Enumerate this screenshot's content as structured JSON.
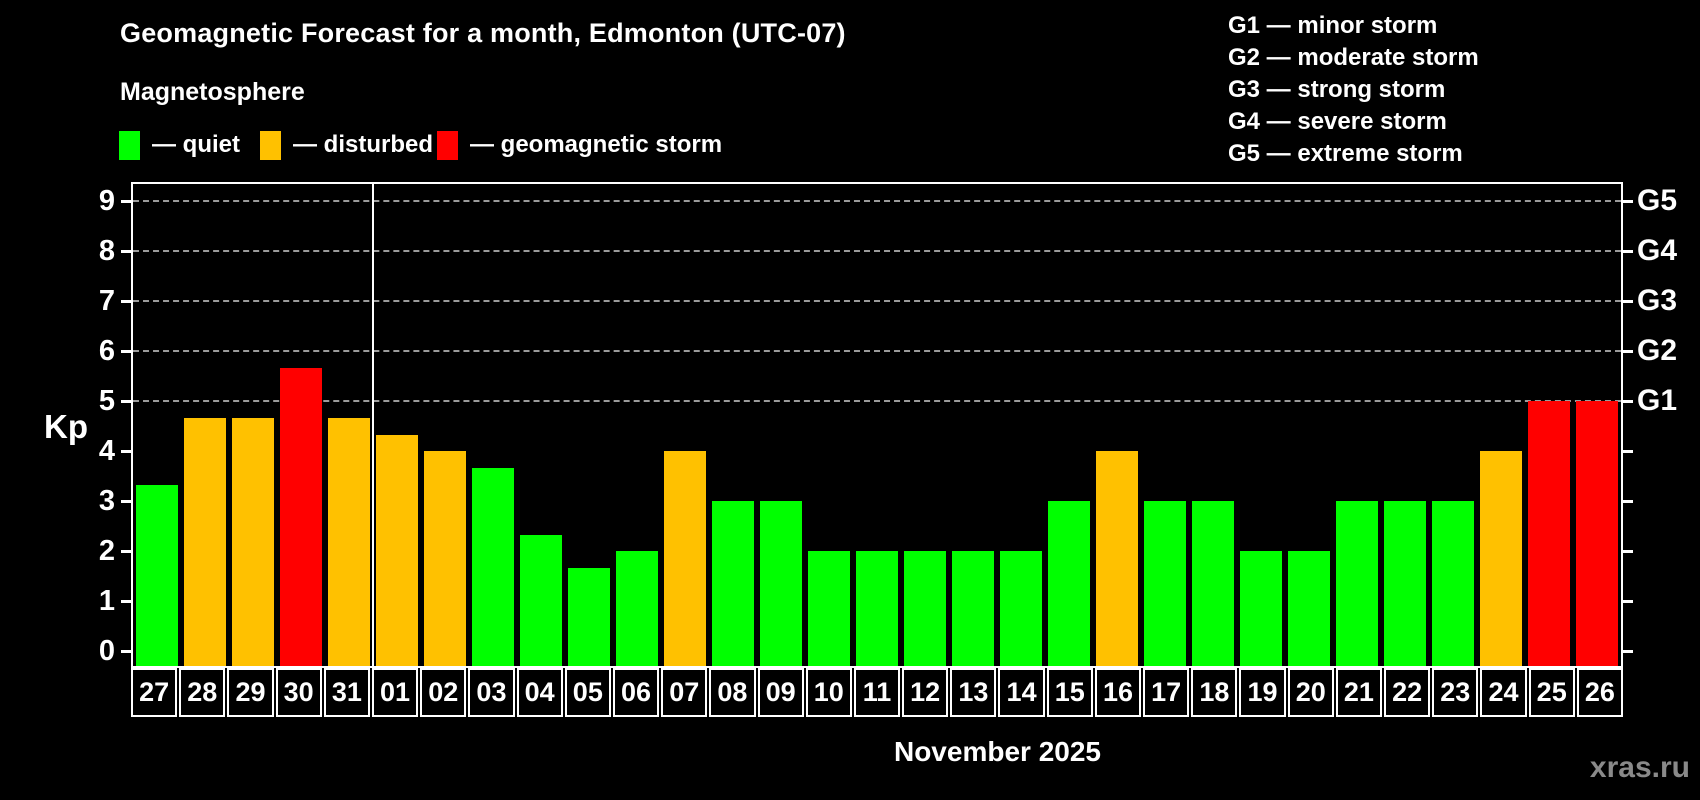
{
  "header": {
    "title": "Geomagnetic Forecast for a month, Edmonton (UTC-07)",
    "subtitle": "Magnetosphere"
  },
  "legend": {
    "items": [
      {
        "status": "quiet",
        "label": "— quiet",
        "color": "#00ff00"
      },
      {
        "status": "disturbed",
        "label": "— disturbed",
        "color": "#ffc100"
      },
      {
        "status": "storm",
        "label": "— geomagnetic storm",
        "color": "#ff0000"
      }
    ]
  },
  "g_scale_legend": {
    "items": [
      {
        "label": "G1 — minor storm"
      },
      {
        "label": "G2 — moderate storm"
      },
      {
        "label": "G3 — strong storm"
      },
      {
        "label": "G4 — severe storm"
      },
      {
        "label": "G5 — extreme storm"
      }
    ]
  },
  "chart_data": {
    "type": "bar",
    "title": "Geomagnetic Forecast for a month, Edmonton (UTC-07)",
    "subtitle": "Magnetosphere",
    "ylabel": "Kp",
    "xlabel": "November 2025",
    "ylim": [
      0,
      9
    ],
    "yticks": [
      0,
      1,
      2,
      3,
      4,
      5,
      6,
      7,
      8,
      9
    ],
    "gridlines_at": [
      5,
      6,
      7,
      8,
      9
    ],
    "grid": "dashed horizontal at storm levels only",
    "legend_position": "top-left",
    "right_axis_labels": [
      {
        "kp": 5,
        "label": "G1"
      },
      {
        "kp": 6,
        "label": "G2"
      },
      {
        "kp": 7,
        "label": "G3"
      },
      {
        "kp": 8,
        "label": "G4"
      },
      {
        "kp": 9,
        "label": "G5"
      }
    ],
    "categories": [
      "27",
      "28",
      "29",
      "30",
      "31",
      "01",
      "02",
      "03",
      "04",
      "05",
      "06",
      "07",
      "08",
      "09",
      "10",
      "11",
      "12",
      "13",
      "14",
      "15",
      "16",
      "17",
      "18",
      "19",
      "20",
      "21",
      "22",
      "23",
      "24",
      "25",
      "26"
    ],
    "values": [
      3.33,
      4.67,
      4.67,
      5.67,
      4.67,
      4.33,
      4.0,
      3.67,
      2.33,
      1.67,
      2.0,
      4.0,
      3.0,
      3.0,
      2.0,
      2.0,
      2.0,
      2.0,
      2.0,
      3.0,
      4.0,
      3.0,
      3.0,
      2.0,
      2.0,
      3.0,
      3.0,
      3.0,
      4.0,
      5.0,
      5.0
    ],
    "statuses": [
      "quiet",
      "disturbed",
      "disturbed",
      "storm",
      "disturbed",
      "disturbed",
      "disturbed",
      "quiet",
      "quiet",
      "quiet",
      "quiet",
      "disturbed",
      "quiet",
      "quiet",
      "quiet",
      "quiet",
      "quiet",
      "quiet",
      "quiet",
      "quiet",
      "disturbed",
      "quiet",
      "quiet",
      "quiet",
      "quiet",
      "quiet",
      "quiet",
      "quiet",
      "disturbed",
      "storm",
      "storm"
    ],
    "month_separator_after_index": 4,
    "colors": {
      "quiet": "#00ff00",
      "disturbed": "#ffc100",
      "storm": "#ff0000"
    }
  },
  "footer": {
    "xlabel": "November 2025",
    "watermark": "xras.ru"
  }
}
